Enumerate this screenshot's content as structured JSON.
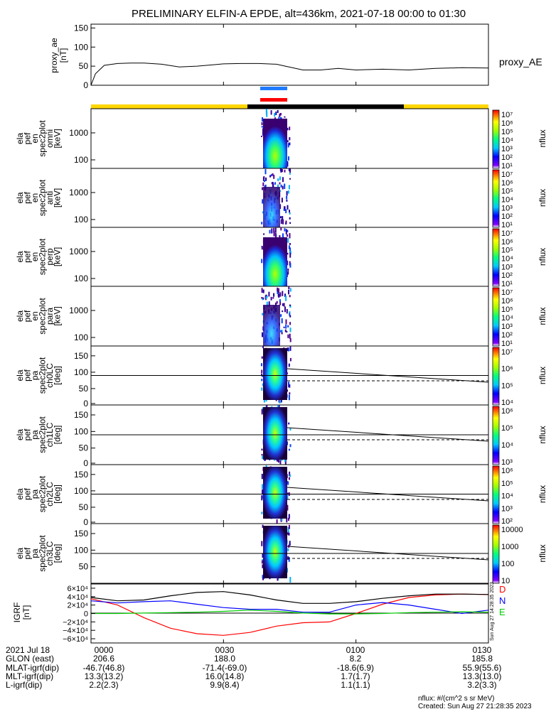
{
  "title": "PRELIMINARY ELFIN-A EPDE, alt=436km, 2021-07-18 00:00 to 01:30",
  "proxy_ae": {
    "ylabel_lines": [
      "proxy_ae",
      "[nT]"
    ],
    "yticks": [
      "150",
      "100",
      "50",
      "0"
    ],
    "line_label": "proxy_AE",
    "chart_data": {
      "type": "line",
      "x_minutes": [
        0,
        1,
        3,
        6,
        9,
        12,
        16,
        20,
        24,
        28,
        30,
        34,
        38,
        42,
        44,
        48,
        52,
        56,
        60,
        66,
        72,
        78,
        84,
        90
      ],
      "y": [
        0,
        30,
        52,
        57,
        58,
        58,
        55,
        48,
        50,
        54,
        56,
        57,
        57,
        55,
        50,
        40,
        40,
        44,
        40,
        42,
        40,
        44,
        46,
        45
      ],
      "ylim": [
        0,
        160
      ],
      "xlim": [
        0,
        90
      ]
    }
  },
  "spectrogram_panels": [
    {
      "ylabel_lines": [
        "ela",
        "pef",
        "en",
        "spec2plot",
        "omni",
        "[keV]"
      ],
      "yticks": [
        "1000",
        "100"
      ],
      "cbar_ticks": [
        "10⁷",
        "10⁶",
        "10⁵",
        "10⁴",
        "10³",
        "10²",
        "10¹"
      ],
      "cbar_label": "nflux"
    },
    {
      "ylabel_lines": [
        "ela",
        "pef",
        "en",
        "spec2plot",
        "anti",
        "[keV]"
      ],
      "yticks": [
        "1000",
        "100"
      ],
      "cbar_ticks": [
        "10⁷",
        "10⁶",
        "10⁵",
        "10⁴",
        "10³",
        "10²",
        "10¹"
      ],
      "cbar_label": "nflux"
    },
    {
      "ylabel_lines": [
        "ela",
        "pef",
        "en",
        "spec2plot",
        "perp",
        "[keV]"
      ],
      "yticks": [
        "1000",
        "100"
      ],
      "cbar_ticks": [
        "10⁷",
        "10⁶",
        "10⁵",
        "10⁴",
        "10³",
        "10²",
        "10¹"
      ],
      "cbar_label": "nflux"
    },
    {
      "ylabel_lines": [
        "ela",
        "pef",
        "en",
        "spec2plot",
        "para",
        "[keV]"
      ],
      "yticks": [
        "1000",
        "100"
      ],
      "cbar_ticks": [
        "10⁷",
        "10⁶",
        "10⁵",
        "10⁴",
        "10³",
        "10²",
        "10¹"
      ],
      "cbar_label": "nflux"
    },
    {
      "ylabel_lines": [
        "ela",
        "pef",
        "pa",
        "spec2plot",
        "ch0LC",
        "[deg]"
      ],
      "yticks": [
        "150",
        "100",
        "50",
        "0"
      ],
      "cbar_ticks": [
        "10⁷",
        "10⁶",
        "10⁵",
        "10⁴"
      ],
      "cbar_label": "nflux"
    },
    {
      "ylabel_lines": [
        "ela",
        "pef",
        "pa",
        "spec2plot",
        "ch1LC",
        "[deg]"
      ],
      "yticks": [
        "150",
        "100",
        "50",
        "0"
      ],
      "cbar_ticks": [
        "10⁶",
        "10⁵",
        "10⁴",
        "10³"
      ],
      "cbar_label": "nflux"
    },
    {
      "ylabel_lines": [
        "ela",
        "pef",
        "pa",
        "spec2plot",
        "ch2LC",
        "[deg]"
      ],
      "yticks": [
        "150",
        "100",
        "50",
        "0"
      ],
      "cbar_ticks": [
        "10⁶",
        "10⁵",
        "10⁴",
        "10³",
        "10²"
      ],
      "cbar_label": "nflux"
    },
    {
      "ylabel_lines": [
        "ela",
        "pef",
        "pa",
        "spec2plot",
        "ch3LC",
        "[deg]"
      ],
      "yticks": [
        "150",
        "100",
        "50"
      ],
      "cbar_ticks": [
        "10000",
        "1000",
        "100",
        "10"
      ],
      "cbar_label": "nflux"
    }
  ],
  "igrf": {
    "ylabel_lines": [
      "IGRF",
      "[nT]"
    ],
    "yticks": [
      "6×10⁴",
      "4×10⁴",
      "2×10⁴",
      "0",
      "−2×10⁴",
      "−4×10⁴",
      "−6×10⁴"
    ],
    "legend": [
      {
        "label": "D",
        "color": "#ff0000"
      },
      {
        "label": "N",
        "color": "#0000ff"
      },
      {
        "label": "E",
        "color": "#00cc00"
      }
    ],
    "chart_data": {
      "type": "line",
      "x_minutes": [
        0,
        6,
        12,
        18,
        24,
        30,
        36,
        42,
        48,
        54,
        60,
        66,
        72,
        78,
        84,
        90
      ],
      "ylim": [
        -70000,
        70000
      ],
      "series": [
        {
          "name": "D",
          "color": "#ff0000",
          "values": [
            35000,
            20000,
            -10000,
            -35000,
            -48000,
            -52000,
            -45000,
            -30000,
            -22000,
            -20000,
            0,
            22000,
            38000,
            44000,
            46000,
            45000
          ]
        },
        {
          "name": "N",
          "color": "#0000ff",
          "values": [
            30000,
            25000,
            28000,
            30000,
            22000,
            14000,
            10000,
            10000,
            3000,
            3000,
            20000,
            26000,
            20000,
            10000,
            0,
            8000
          ]
        },
        {
          "name": "E",
          "color": "#00cc00",
          "values": [
            0,
            0,
            1000,
            2000,
            3000,
            5000,
            8000,
            5000,
            1000,
            -1000,
            -1000,
            0,
            2000,
            3000,
            4000,
            3000
          ]
        },
        {
          "name": "Total",
          "color": "#000000",
          "values": [
            38000,
            30000,
            32000,
            42000,
            50000,
            52000,
            44000,
            32000,
            24000,
            24000,
            28000,
            36000,
            42000,
            46000,
            46000,
            45000
          ]
        }
      ]
    }
  },
  "created_side_text": "Sun Aug 27 14:28:35 2023",
  "footer": {
    "row_labels": [
      "2021 Jul 18",
      "GLON (east)",
      "MLAT-igrf(dip)",
      "MLT-igrf(dip)",
      "L-igrf(dip)"
    ],
    "columns": [
      {
        "time": "0000",
        "values": [
          "206.6",
          "-46.7(46.8)",
          "13.3(13.2)",
          "2.2(2.3)"
        ]
      },
      {
        "time": "0030",
        "values": [
          "188.0",
          "-71.4(-69.0)",
          "16.0(14.8)",
          "9.9(8.4)"
        ]
      },
      {
        "time": "0100",
        "values": [
          "8.2",
          "-18.6(6.9)",
          "1.7(1.7)",
          "1.1(1.1)"
        ]
      },
      {
        "time": "0130",
        "values": [
          "185.8",
          "55.9(55.6)",
          "13.3(13.0)",
          "3.2(3.3)"
        ]
      }
    ],
    "units_note": "nflux: #/(cm^2 s sr MeV)",
    "created": "Created: Sun Aug 27 21:28:35 2023"
  }
}
